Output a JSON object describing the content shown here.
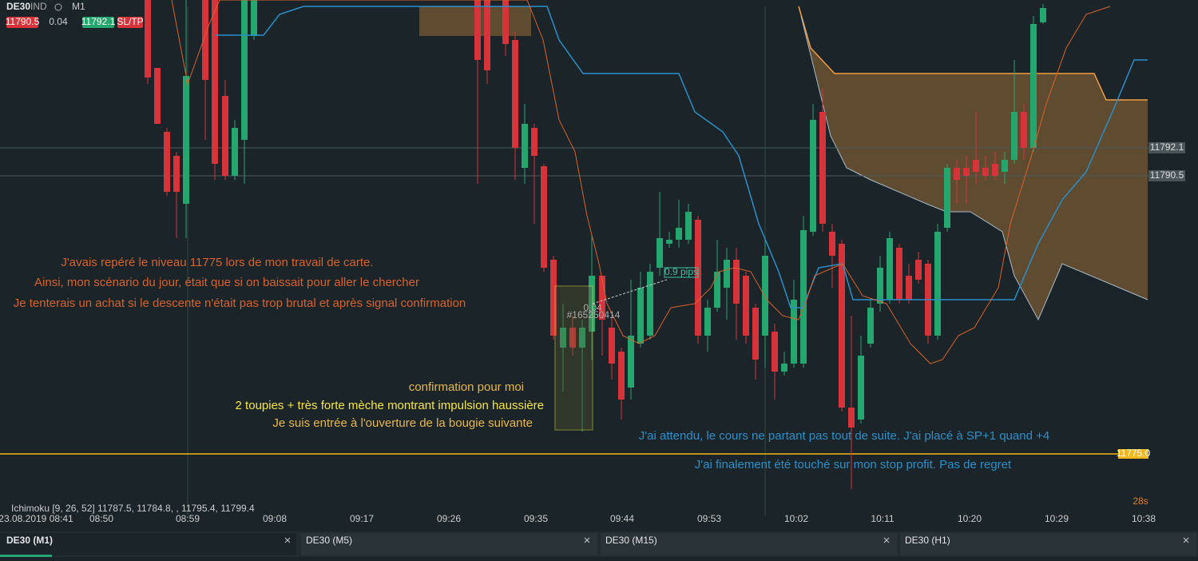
{
  "toolbar": {
    "symbol": "DE30",
    "type": "IND",
    "timeframe": "M1",
    "bid": "11790.5",
    "spread": "0.04",
    "ask": "11792.1",
    "sltp": "SL/TP"
  },
  "price_labels": [
    "11792.1",
    "11790.5",
    "11775.0"
  ],
  "trade": {
    "pips": "0.9 pips",
    "volume": "0.04",
    "ticket": "#165250414"
  },
  "annotations": {
    "orange": [
      "J'avais repéré le niveau 11775 lors de mon travail de carte.",
      "Ainsi, mon scénario du jour, était que si on baissait pour aller le chercher",
      "Je tenterais un achat si le descente n'était pas trop brutal et après signal confirmation"
    ],
    "yellow": [
      "confirmation pour moi",
      "2 toupies + très forte mèche montrant impulsion haussière",
      "Je suis entrée à l'ouverture de la bougie suivante"
    ],
    "blue": [
      "J'ai attendu, le cours ne partant pas tout de suite. J'ai placé à SP+1 quand +4",
      "J'ai finalement été touché sur mon stop profit. Pas de regret"
    ]
  },
  "indicator": "Ichimoku [9, 26, 52] 11787.5, 11784.8, , 11795.4, 11799.4",
  "timer": "28s",
  "time_axis": [
    "23.08.2019 08:41",
    "08:50",
    "08:59",
    "09:08",
    "09:17",
    "09:26",
    "09:35",
    "09:44",
    "09:53",
    "10:02",
    "10:11",
    "10:20",
    "10:29",
    "10:38"
  ],
  "tabs": [
    "DE30 (M1)",
    "DE30 (M5)",
    "DE30 (M15)",
    "DE30 (H1)"
  ]
}
